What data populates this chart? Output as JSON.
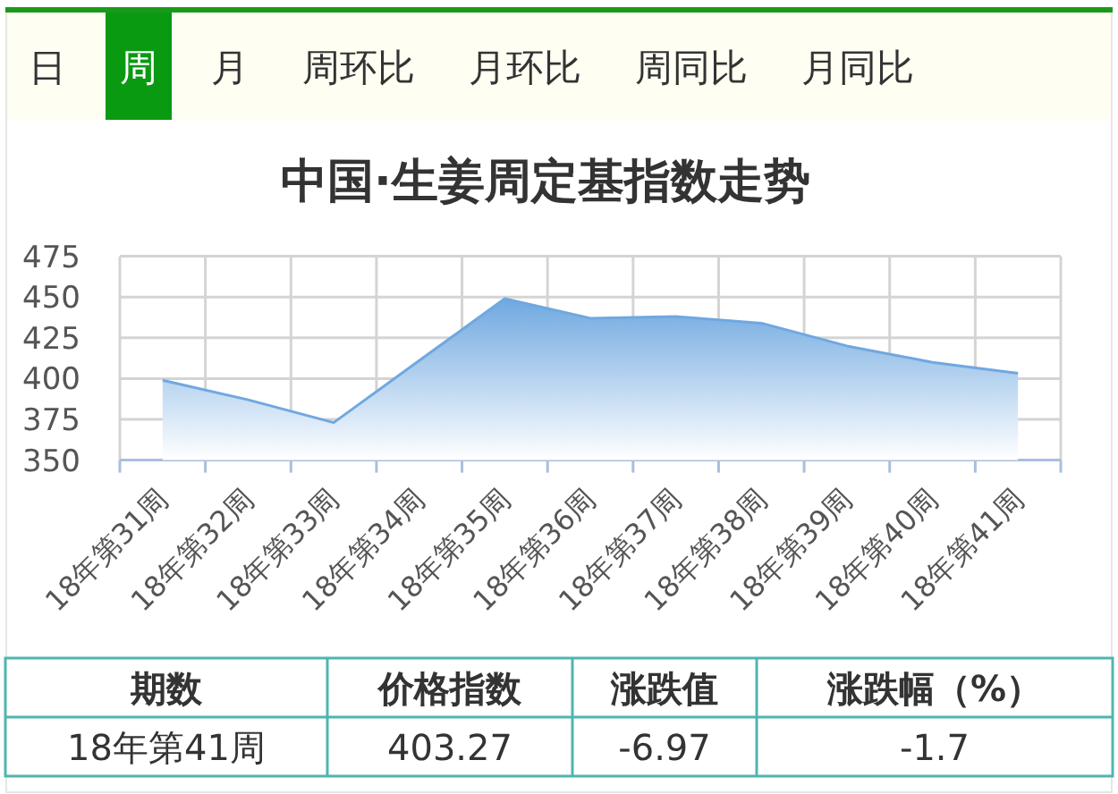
{
  "chart_data": [
    {
      "type": "other",
      "annotations": [
        "日",
        "周",
        "月",
        "周环比",
        "月环比",
        "周同比",
        "月同比"
      ]
    },
    {
      "type": "area",
      "title": "中国·生姜周定基指数走势",
      "categories": [
        "18年第31周",
        "18年第32周",
        "18年第33周",
        "18年第34周",
        "18年第35周",
        "18年第36周",
        "18年第37周",
        "18年第38周",
        "18年第39周",
        "18年第40周",
        "18年第41周"
      ],
      "values": [
        399,
        387,
        373,
        411,
        449,
        437,
        438,
        434,
        420,
        410,
        403.27
      ],
      "color": "#6fa8e0",
      "ylim": [
        350,
        475
      ],
      "yticks": [
        350,
        375,
        400,
        425,
        450,
        475
      ],
      "grid": true
    },
    {
      "type": "other",
      "annotations": [
        "期数",
        "价格指数",
        "涨跌值",
        "涨跌幅（%）",
        "18年第41周",
        "403.27",
        "-6.97",
        "-1.7"
      ]
    }
  ]
}
